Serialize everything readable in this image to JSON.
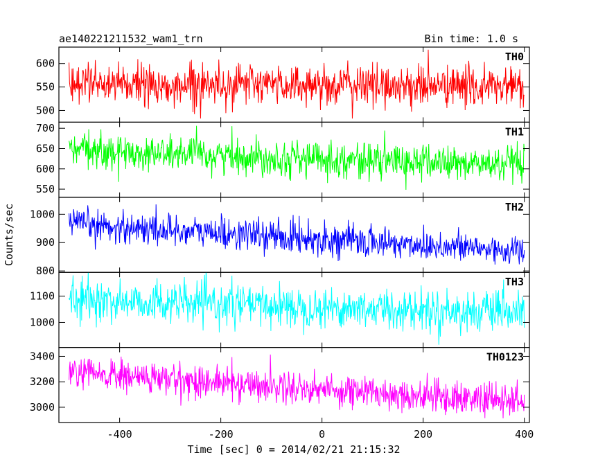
{
  "chart_data": {
    "type": "line",
    "title": "ae140221211532_wam1_trn",
    "subtitle": "Bin time: 1.0 s",
    "xlabel": "Time [sec] 0 = 2014/02/21 21:15:32",
    "ylabel": "Counts/sec",
    "xlim": [
      -520,
      410
    ],
    "x_range_data": [
      -500,
      400
    ],
    "x_ticks": [
      -400,
      -200,
      0,
      200,
      400
    ],
    "x_ticks_labeled": true,
    "grid": false,
    "panels": [
      {
        "name": "TH0",
        "color": "#ff0000",
        "ylim": [
          475,
          635
        ],
        "y_ticks": [
          500,
          550,
          600
        ],
        "start_mean": 560,
        "end_mean": 550,
        "noise_sd": 22
      },
      {
        "name": "TH1",
        "color": "#00ff00",
        "ylim": [
          530,
          715
        ],
        "y_ticks": [
          550,
          600,
          650,
          700
        ],
        "start_mean": 645,
        "end_mean": 608,
        "noise_sd": 22
      },
      {
        "name": "TH2",
        "color": "#0000ff",
        "ylim": [
          795,
          1060
        ],
        "y_ticks": [
          800,
          900,
          1000
        ],
        "start_mean": 965,
        "end_mean": 870,
        "noise_sd": 28
      },
      {
        "name": "TH3",
        "color": "#00ffff",
        "ylim": [
          905,
          1190
        ],
        "y_ticks": [
          1000,
          1100
        ],
        "start_mean": 1085,
        "end_mean": 1035,
        "noise_sd": 38
      },
      {
        "name": "TH0123",
        "color": "#ff00ff",
        "ylim": [
          2880,
          3470
        ],
        "y_ticks": [
          3000,
          3200,
          3400
        ],
        "start_mean": 3270,
        "end_mean": 3040,
        "noise_sd": 65
      }
    ]
  }
}
